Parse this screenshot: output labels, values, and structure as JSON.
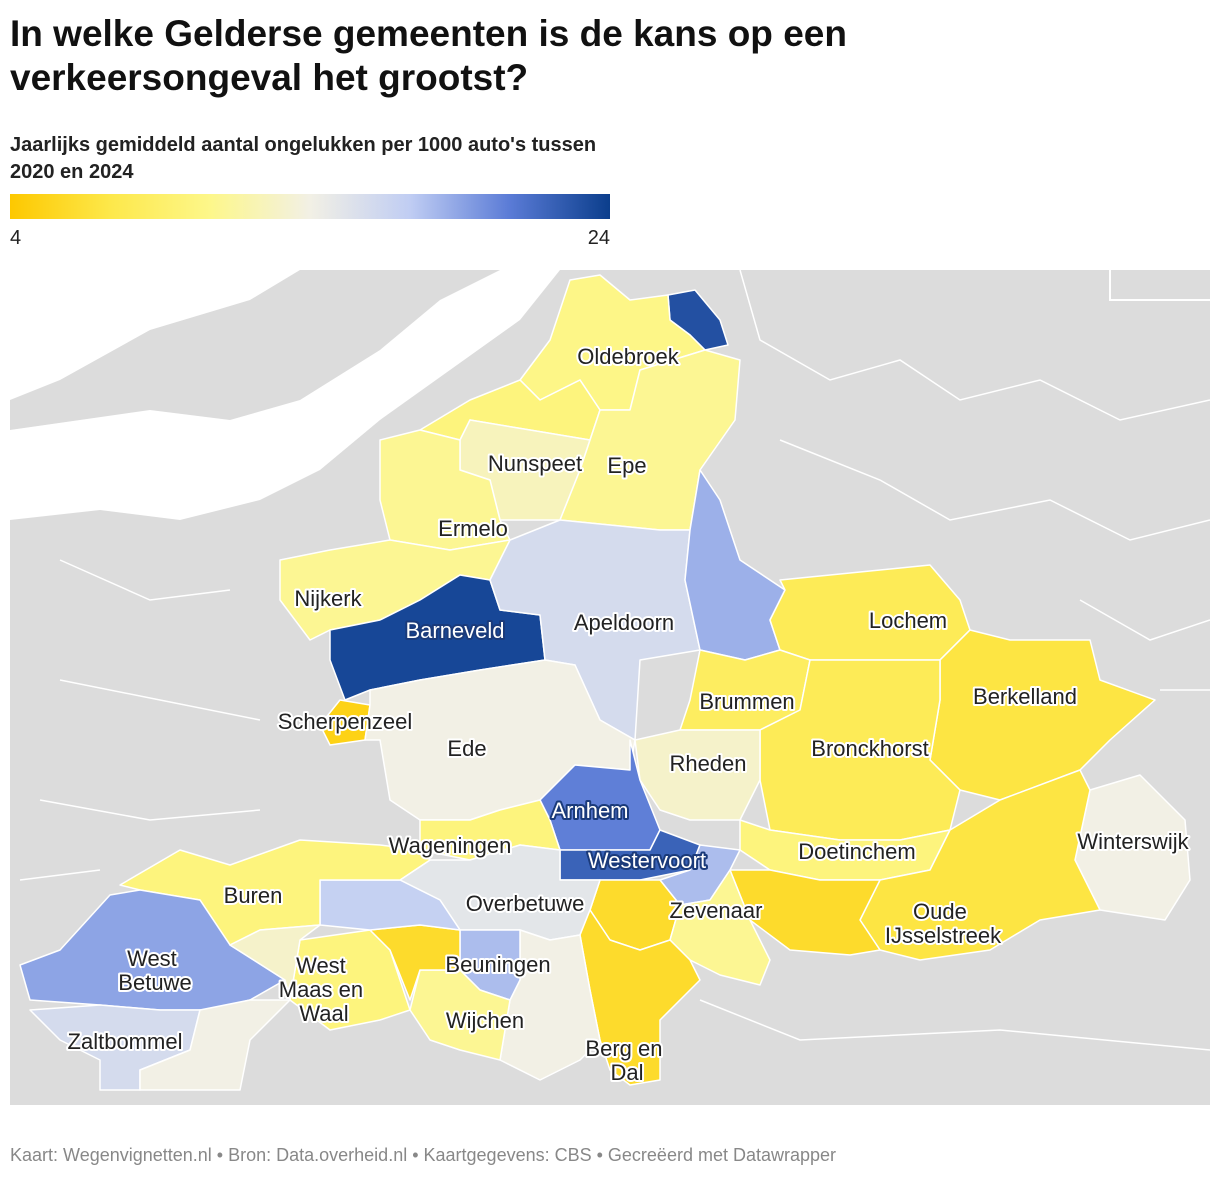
{
  "title": "In welke Gelderse gemeenten is de kans op een verkeersongeval het grootst?",
  "subtitle": "Jaarlijks gemiddeld aantal ongelukken per 1000 auto's tussen 2020 en 2024",
  "legend": {
    "min": 4,
    "max": 24,
    "ticks": [
      4,
      24
    ],
    "colors": [
      "#fdc800",
      "#fde84a",
      "#fdf78a",
      "#f2f0e5",
      "#c0cdf3",
      "#5a7bd6",
      "#0b3e8c"
    ]
  },
  "regions": [
    {
      "name": null,
      "value": 23
    },
    {
      "name": "Oldebroek",
      "value": 10.5
    },
    {
      "name": null,
      "value": 10
    },
    {
      "name": "Nunspeet",
      "value": 12.5
    },
    {
      "name": "Epe",
      "value": 11
    },
    {
      "name": "Ermelo",
      "value": 11
    },
    {
      "name": "Nijkerk",
      "value": 11
    },
    {
      "name": "Barneveld",
      "value": 23.5
    },
    {
      "name": "Apeldoorn",
      "value": 16
    },
    {
      "name": null,
      "value": 18.5
    },
    {
      "name": "Scherpenzeel",
      "value": 5
    },
    {
      "name": "Ede",
      "value": 14
    },
    {
      "name": "Lochem",
      "value": 8
    },
    {
      "name": "Berkelland",
      "value": 7
    },
    {
      "name": "Brummen",
      "value": 8.5
    },
    {
      "name": "Bronckhorst",
      "value": 8
    },
    {
      "name": "Rheden",
      "value": 13
    },
    {
      "name": "Arnhem",
      "value": 20.5
    },
    {
      "name": "Wageningen",
      "value": 10
    },
    {
      "name": "Winterswijk",
      "value": 14
    },
    {
      "name": "Doetinchem",
      "value": 10
    },
    {
      "name": "Oude IJsselstreek",
      "value": 7
    },
    {
      "name": null,
      "value": 6
    },
    {
      "name": "Westervoort",
      "value": 22
    },
    {
      "name": "Zevenaar",
      "value": 18
    },
    {
      "name": null,
      "value": 6
    },
    {
      "name": null,
      "value": 11
    },
    {
      "name": "Overbetuwe",
      "value": 15
    },
    {
      "name": "Berg en Dal",
      "value": 6
    },
    {
      "name": null,
      "value": 14
    },
    {
      "name": "Beuningen",
      "value": 18
    },
    {
      "name": "Wijchen",
      "value": 11
    },
    {
      "name": "West Maas en Waal",
      "value": 10
    },
    {
      "name": null,
      "value": 6
    },
    {
      "name": null,
      "value": 17
    },
    {
      "name": "Buren",
      "value": 10
    },
    {
      "name": "West Betuwe",
      "value": 19
    },
    {
      "name": "Zaltbommel",
      "value": 16
    },
    {
      "name": null,
      "value": 14
    },
    {
      "name": null,
      "value": 13
    }
  ],
  "footer": "Kaart: Wegenvignetten.nl • Bron: Data.overheid.nl • Kaartgegevens: CBS • Gecreëerd met Datawrapper"
}
